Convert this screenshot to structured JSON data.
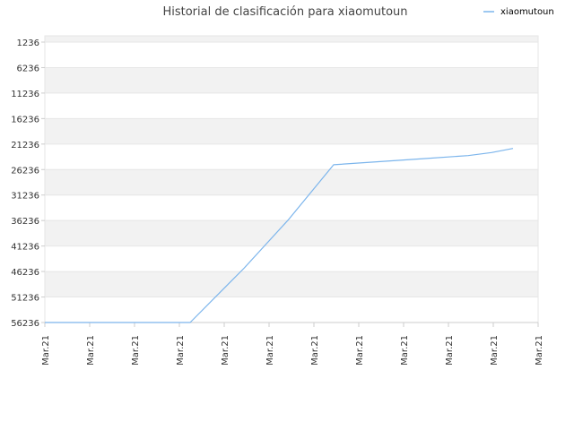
{
  "chart_data": {
    "type": "line",
    "title": "Historial de clasificación para xiaomutoun",
    "xlabel": "",
    "ylabel": "",
    "x": [
      "Mar.21",
      "Mar.21",
      "Mar.21",
      "Mar.21",
      "Mar.21",
      "Mar.21",
      "Mar.21",
      "Mar.21",
      "Mar.21",
      "Mar.21",
      "Mar.21",
      "Mar.21"
    ],
    "y_ticks": [
      1236,
      6236,
      11236,
      16236,
      21236,
      26236,
      31236,
      36236,
      41236,
      46236,
      51236,
      56236
    ],
    "y_ticks_labels": [
      "1236",
      "6236",
      "11236",
      "16236",
      "21236",
      "26236",
      "31236",
      "36236",
      "41236",
      "46236",
      "51236",
      "56236"
    ],
    "ylim": [
      1236,
      56236
    ],
    "y_inverted": true,
    "grid": "horizontal alternating bands",
    "legend": "top-right",
    "series": [
      {
        "name": "xiaomutoun",
        "color": "#7cb5ec",
        "values": [
          56236,
          56236,
          56236,
          45600,
          36000,
          25300,
          24700,
          24100,
          23500,
          22900,
          22100,
          20900
        ]
      }
    ]
  },
  "colors": {
    "band": "#f2f2f2",
    "grid": "#e6e6e6",
    "axis": "#cccccc"
  }
}
